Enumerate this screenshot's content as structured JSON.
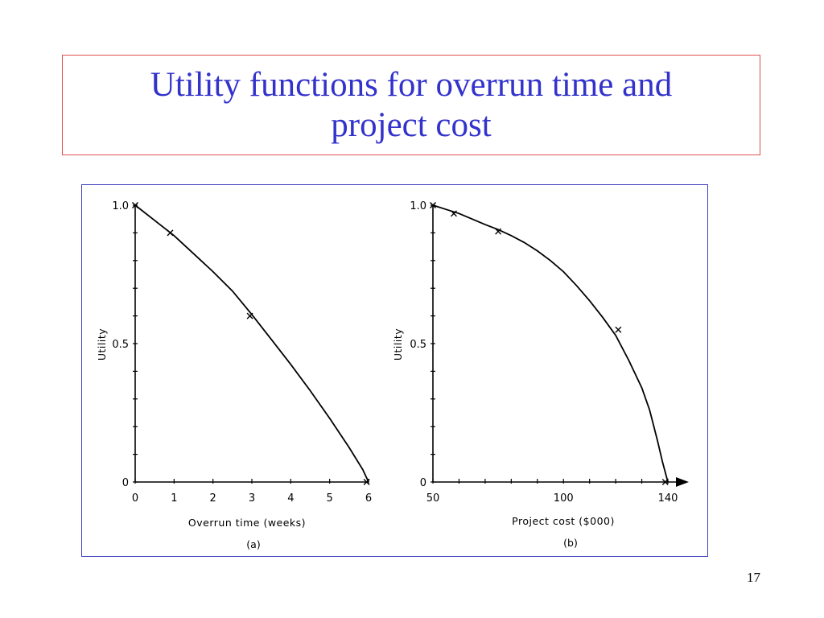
{
  "slide": {
    "title": "Utility functions for overrun time and project cost",
    "page_number": "17"
  },
  "chart_data": [
    {
      "type": "line",
      "panel_label": "(a)",
      "xlabel": "Overrun time (weeks)",
      "ylabel": "Utility",
      "xlim": [
        0,
        6
      ],
      "ylim": [
        0,
        1.0
      ],
      "x_ticks": [
        "0",
        "1",
        "2",
        "3",
        "4",
        "5",
        "6"
      ],
      "y_ticks": [
        "0",
        "0.5",
        "1.0"
      ],
      "curve": {
        "x": [
          0,
          0.5,
          1,
          1.5,
          2,
          2.5,
          3,
          3.5,
          4,
          4.5,
          5,
          5.5,
          5.85,
          6
        ],
        "y": [
          1.0,
          0.945,
          0.89,
          0.825,
          0.76,
          0.69,
          0.605,
          0.515,
          0.425,
          0.33,
          0.23,
          0.125,
          0.045,
          0.0
        ]
      },
      "marked_points": {
        "x": [
          0,
          0.9,
          2.95,
          5.95
        ],
        "y": [
          1.0,
          0.9,
          0.6,
          0.0
        ]
      },
      "marker": "x",
      "color": "#000000"
    },
    {
      "type": "line",
      "panel_label": "(b)",
      "xlabel": "Project cost ($000)",
      "ylabel": "Utility",
      "xlim": [
        50,
        140
      ],
      "ylim": [
        0,
        1.0
      ],
      "x_ticks": [
        "50",
        "100",
        "140"
      ],
      "x_tick_values": [
        50,
        100,
        140
      ],
      "x_minor_ticks": [
        50,
        60,
        70,
        80,
        90,
        100,
        110,
        120,
        130,
        140
      ],
      "y_ticks": [
        "0",
        "0.5",
        "1.0"
      ],
      "curve": {
        "x": [
          50,
          55,
          60,
          65,
          70,
          75,
          80,
          85,
          90,
          95,
          100,
          105,
          110,
          115,
          120,
          125,
          130,
          133,
          136,
          138,
          140
        ],
        "y": [
          1.0,
          0.985,
          0.97,
          0.95,
          0.93,
          0.912,
          0.89,
          0.865,
          0.835,
          0.8,
          0.76,
          0.71,
          0.655,
          0.595,
          0.53,
          0.44,
          0.34,
          0.26,
          0.15,
          0.07,
          0.0
        ]
      },
      "marked_points": {
        "x": [
          50,
          58,
          75,
          121,
          139
        ],
        "y": [
          1.0,
          0.97,
          0.905,
          0.55,
          0.0
        ]
      },
      "marker": "x",
      "arrow_on_x_axis": true,
      "color": "#000000"
    }
  ]
}
